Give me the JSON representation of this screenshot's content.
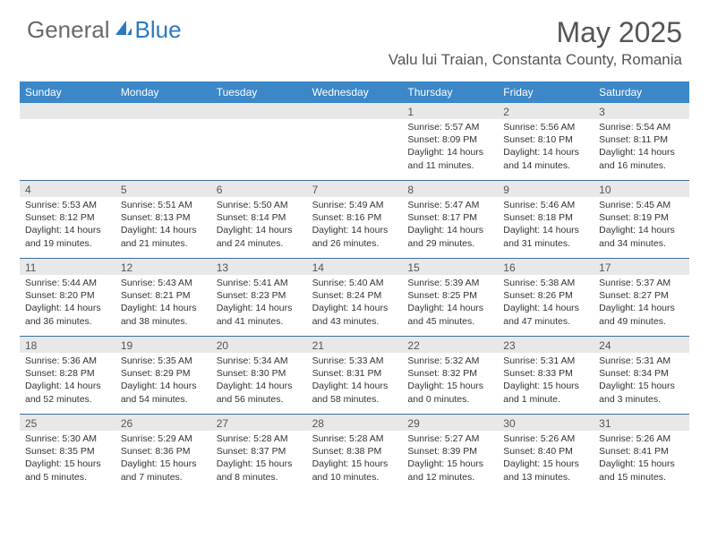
{
  "logo": {
    "text1": "General",
    "text2": "Blue",
    "accent": "#2a7ac0",
    "gray": "#6a6a6a"
  },
  "title": "May 2025",
  "location": "Valu lui Traian, Constanta County, Romania",
  "header_bg": "#3b87c8",
  "header_fg": "#ffffff",
  "daynum_bg": "#e8e8e8",
  "border_color": "#3b6fa0",
  "weekdays": [
    "Sunday",
    "Monday",
    "Tuesday",
    "Wednesday",
    "Thursday",
    "Friday",
    "Saturday"
  ],
  "weeks": [
    [
      null,
      null,
      null,
      null,
      {
        "n": "1",
        "sr": "5:57 AM",
        "ss": "8:09 PM",
        "dl": "14 hours and 11 minutes."
      },
      {
        "n": "2",
        "sr": "5:56 AM",
        "ss": "8:10 PM",
        "dl": "14 hours and 14 minutes."
      },
      {
        "n": "3",
        "sr": "5:54 AM",
        "ss": "8:11 PM",
        "dl": "14 hours and 16 minutes."
      }
    ],
    [
      {
        "n": "4",
        "sr": "5:53 AM",
        "ss": "8:12 PM",
        "dl": "14 hours and 19 minutes."
      },
      {
        "n": "5",
        "sr": "5:51 AM",
        "ss": "8:13 PM",
        "dl": "14 hours and 21 minutes."
      },
      {
        "n": "6",
        "sr": "5:50 AM",
        "ss": "8:14 PM",
        "dl": "14 hours and 24 minutes."
      },
      {
        "n": "7",
        "sr": "5:49 AM",
        "ss": "8:16 PM",
        "dl": "14 hours and 26 minutes."
      },
      {
        "n": "8",
        "sr": "5:47 AM",
        "ss": "8:17 PM",
        "dl": "14 hours and 29 minutes."
      },
      {
        "n": "9",
        "sr": "5:46 AM",
        "ss": "8:18 PM",
        "dl": "14 hours and 31 minutes."
      },
      {
        "n": "10",
        "sr": "5:45 AM",
        "ss": "8:19 PM",
        "dl": "14 hours and 34 minutes."
      }
    ],
    [
      {
        "n": "11",
        "sr": "5:44 AM",
        "ss": "8:20 PM",
        "dl": "14 hours and 36 minutes."
      },
      {
        "n": "12",
        "sr": "5:43 AM",
        "ss": "8:21 PM",
        "dl": "14 hours and 38 minutes."
      },
      {
        "n": "13",
        "sr": "5:41 AM",
        "ss": "8:23 PM",
        "dl": "14 hours and 41 minutes."
      },
      {
        "n": "14",
        "sr": "5:40 AM",
        "ss": "8:24 PM",
        "dl": "14 hours and 43 minutes."
      },
      {
        "n": "15",
        "sr": "5:39 AM",
        "ss": "8:25 PM",
        "dl": "14 hours and 45 minutes."
      },
      {
        "n": "16",
        "sr": "5:38 AM",
        "ss": "8:26 PM",
        "dl": "14 hours and 47 minutes."
      },
      {
        "n": "17",
        "sr": "5:37 AM",
        "ss": "8:27 PM",
        "dl": "14 hours and 49 minutes."
      }
    ],
    [
      {
        "n": "18",
        "sr": "5:36 AM",
        "ss": "8:28 PM",
        "dl": "14 hours and 52 minutes."
      },
      {
        "n": "19",
        "sr": "5:35 AM",
        "ss": "8:29 PM",
        "dl": "14 hours and 54 minutes."
      },
      {
        "n": "20",
        "sr": "5:34 AM",
        "ss": "8:30 PM",
        "dl": "14 hours and 56 minutes."
      },
      {
        "n": "21",
        "sr": "5:33 AM",
        "ss": "8:31 PM",
        "dl": "14 hours and 58 minutes."
      },
      {
        "n": "22",
        "sr": "5:32 AM",
        "ss": "8:32 PM",
        "dl": "15 hours and 0 minutes."
      },
      {
        "n": "23",
        "sr": "5:31 AM",
        "ss": "8:33 PM",
        "dl": "15 hours and 1 minute."
      },
      {
        "n": "24",
        "sr": "5:31 AM",
        "ss": "8:34 PM",
        "dl": "15 hours and 3 minutes."
      }
    ],
    [
      {
        "n": "25",
        "sr": "5:30 AM",
        "ss": "8:35 PM",
        "dl": "15 hours and 5 minutes."
      },
      {
        "n": "26",
        "sr": "5:29 AM",
        "ss": "8:36 PM",
        "dl": "15 hours and 7 minutes."
      },
      {
        "n": "27",
        "sr": "5:28 AM",
        "ss": "8:37 PM",
        "dl": "15 hours and 8 minutes."
      },
      {
        "n": "28",
        "sr": "5:28 AM",
        "ss": "8:38 PM",
        "dl": "15 hours and 10 minutes."
      },
      {
        "n": "29",
        "sr": "5:27 AM",
        "ss": "8:39 PM",
        "dl": "15 hours and 12 minutes."
      },
      {
        "n": "30",
        "sr": "5:26 AM",
        "ss": "8:40 PM",
        "dl": "15 hours and 13 minutes."
      },
      {
        "n": "31",
        "sr": "5:26 AM",
        "ss": "8:41 PM",
        "dl": "15 hours and 15 minutes."
      }
    ]
  ],
  "labels": {
    "sunrise": "Sunrise:",
    "sunset": "Sunset:",
    "daylight": "Daylight:"
  }
}
